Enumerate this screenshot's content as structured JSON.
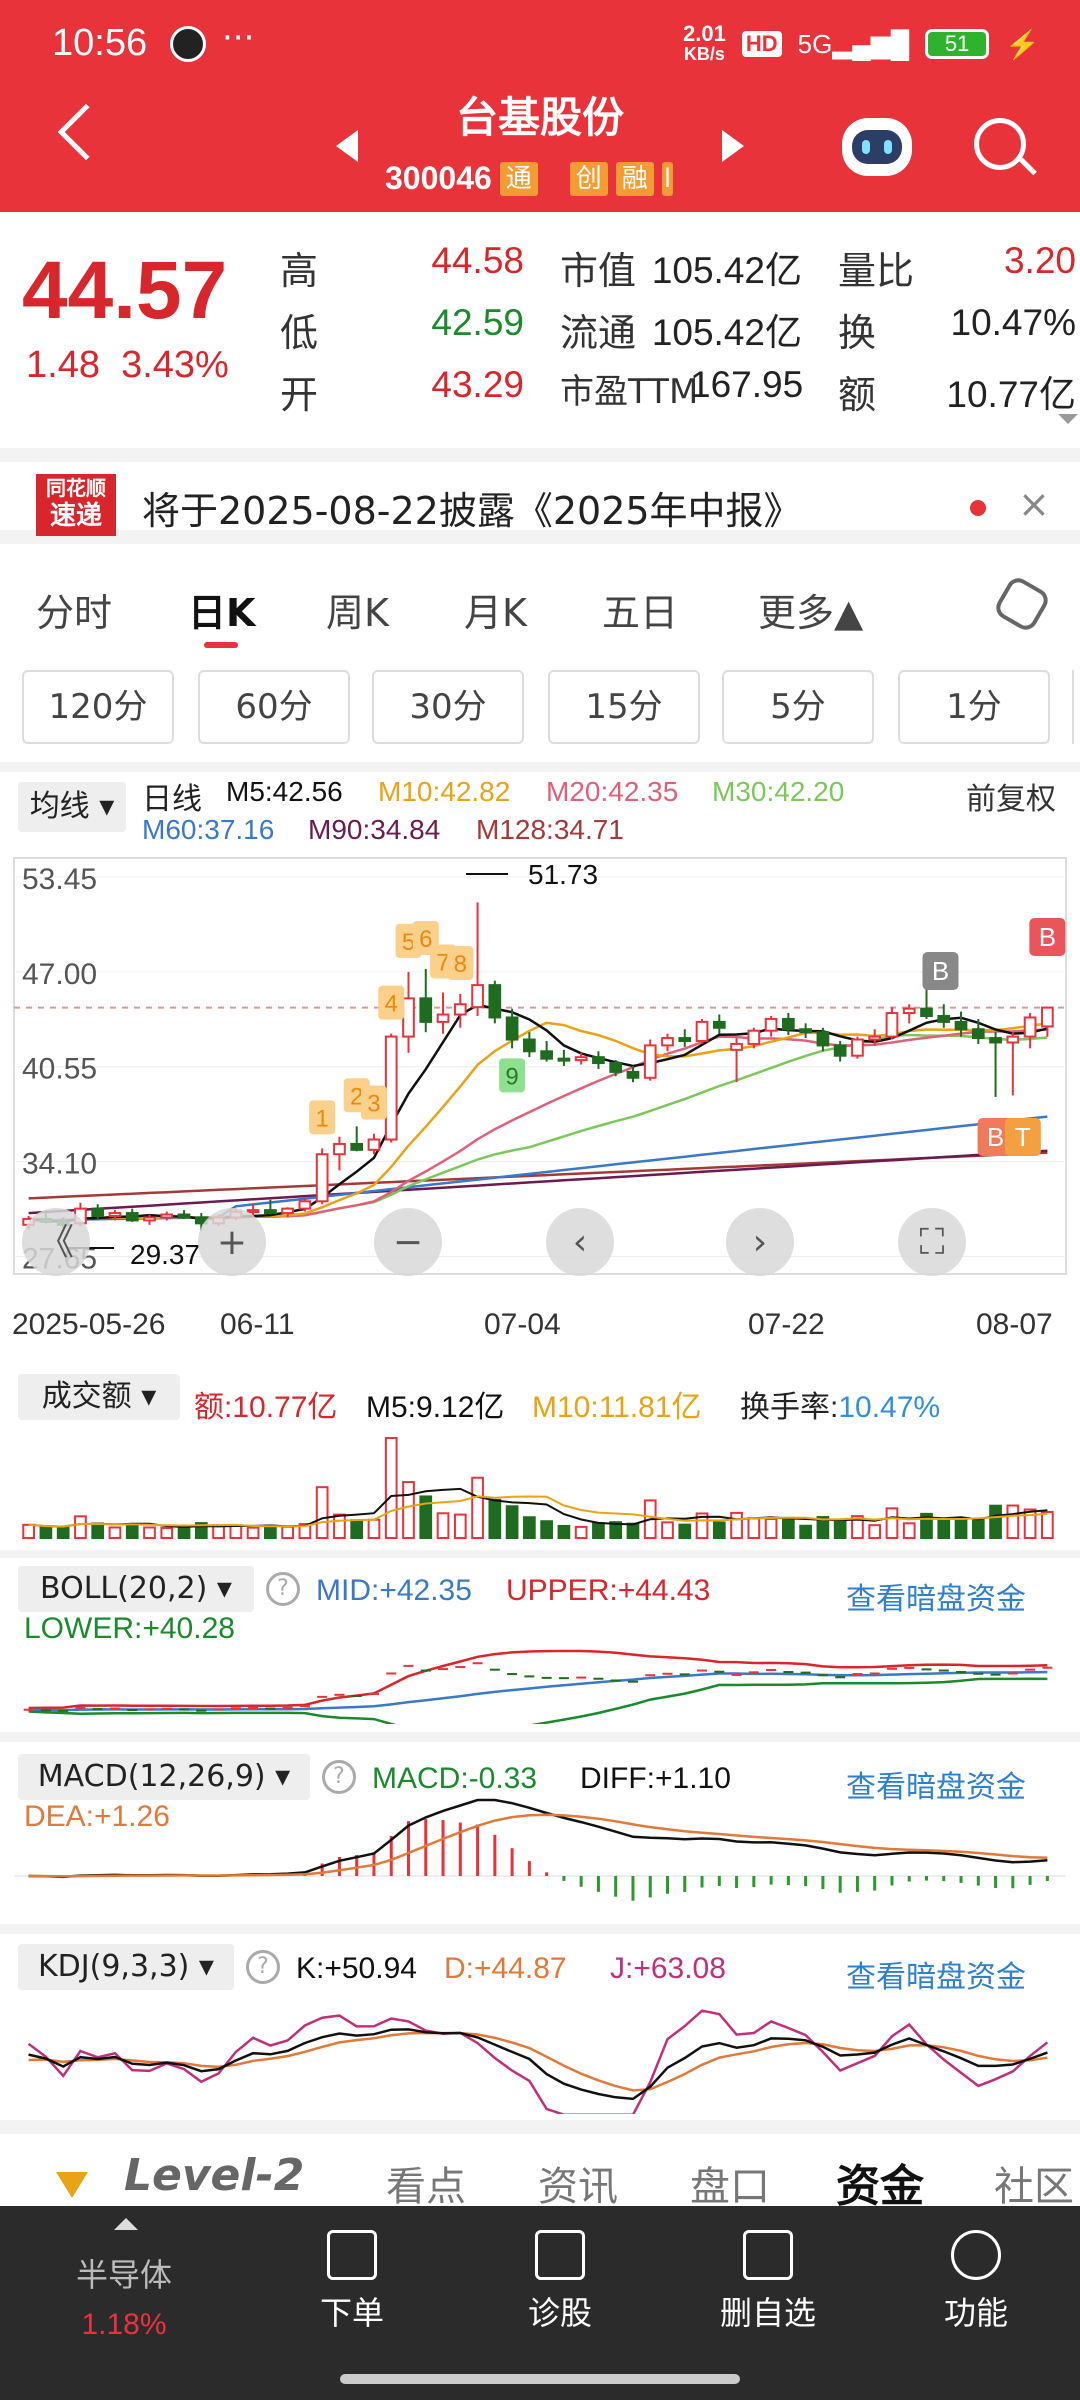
{
  "status": {
    "time": "10:56",
    "speed_top": "2.01",
    "speed_bot": "KB/s",
    "battery": "51"
  },
  "header": {
    "title": "台基股份",
    "code": "300046",
    "tags": [
      "通",
      "创",
      "融",
      "l"
    ]
  },
  "quote": {
    "price": "44.57",
    "change": "1.48",
    "pct": "3.43%",
    "high_label": "高",
    "high": "44.58",
    "low_label": "低",
    "low": "42.59",
    "open_label": "开",
    "open": "43.29",
    "mcap_label": "市值",
    "mcap": "105.42亿",
    "float_label": "流通",
    "float": "105.42亿",
    "pe_label": "市盈TTM",
    "pe": "167.95",
    "vr_label": "量比",
    "vr": "3.20",
    "turn_label": "换",
    "turn": "10.47%",
    "amt_label": "额",
    "amt": "10.77亿"
  },
  "notice": {
    "logo_top": "同花顺",
    "logo_bot": "速递",
    "text": "将于2025-08-22披露《2025年中报》"
  },
  "tabs": [
    "分时",
    "日K",
    "周K",
    "月K",
    "五日",
    "更多▲"
  ],
  "chips": [
    "120分",
    "60分",
    "30分",
    "15分",
    "5分",
    "1分"
  ],
  "ma_legend": {
    "selector": "均线",
    "kind": "日线",
    "adjust": "前复权",
    "m5": "M5:42.56",
    "m10": "M10:42.82",
    "m20": "M20:42.35",
    "m30": "M30:42.20",
    "m60": "M60:37.16",
    "m90": "M90:34.84",
    "m128": "M128:34.71"
  },
  "chart_data": {
    "type": "candlestick",
    "y_ticks": [
      "53.45",
      "47.00",
      "40.55",
      "34.10",
      "27.65"
    ],
    "x_ticks": [
      "2025-05-26",
      "06-11",
      "07-04",
      "07-22",
      "08-07"
    ],
    "high_mark": "51.73",
    "low_mark": "29.37",
    "nine_labels": [
      "1",
      "2",
      "3",
      "4",
      "5",
      "6",
      "7",
      "8",
      "9"
    ],
    "signals": [
      "B",
      "B",
      "B",
      "T"
    ],
    "colors": {
      "up": "#e8333a",
      "down": "#1f6b1f",
      "m5": "#111111",
      "m10": "#e8a317",
      "m20": "#e0607a",
      "m30": "#7cc75a",
      "m60": "#3a78c9",
      "m90": "#6b1b4f",
      "m128": "#a33a3a"
    },
    "candles": [
      [
        29.8,
        30.4,
        29.5,
        30.2
      ],
      [
        30.2,
        30.6,
        29.9,
        30.0
      ],
      [
        30.0,
        30.3,
        29.6,
        29.8
      ],
      [
        29.9,
        31.3,
        29.7,
        30.9
      ],
      [
        30.9,
        31.2,
        30.2,
        30.4
      ],
      [
        30.4,
        30.8,
        30.1,
        30.6
      ],
      [
        30.6,
        30.9,
        30.0,
        30.1
      ],
      [
        30.1,
        30.5,
        29.8,
        30.3
      ],
      [
        30.3,
        30.7,
        30.1,
        30.5
      ],
      [
        30.5,
        30.8,
        30.2,
        30.3
      ],
      [
        30.3,
        30.6,
        29.4,
        29.9
      ],
      [
        29.9,
        30.5,
        29.7,
        30.3
      ],
      [
        30.3,
        30.9,
        30.1,
        30.7
      ],
      [
        30.7,
        31.2,
        30.4,
        30.8
      ],
      [
        30.8,
        31.5,
        30.5,
        30.6
      ],
      [
        30.6,
        31.0,
        30.3,
        30.9
      ],
      [
        30.9,
        31.6,
        30.7,
        31.4
      ],
      [
        31.4,
        35.0,
        31.2,
        34.6
      ],
      [
        34.6,
        35.8,
        33.5,
        35.3
      ],
      [
        35.3,
        36.5,
        34.8,
        34.9
      ],
      [
        34.9,
        36.0,
        34.6,
        35.6
      ],
      [
        35.6,
        42.8,
        35.4,
        42.6
      ],
      [
        42.6,
        47.0,
        41.5,
        45.2
      ],
      [
        45.2,
        47.2,
        42.9,
        43.6
      ],
      [
        43.6,
        45.6,
        42.8,
        44.1
      ],
      [
        44.1,
        45.5,
        43.2,
        44.8
      ],
      [
        44.6,
        51.73,
        44.0,
        46.1
      ],
      [
        46.1,
        46.4,
        43.5,
        43.9
      ],
      [
        43.9,
        44.5,
        41.8,
        42.4
      ],
      [
        42.4,
        42.9,
        41.2,
        41.6
      ],
      [
        41.6,
        42.3,
        40.9,
        41.1
      ],
      [
        41.1,
        41.7,
        40.6,
        41.0
      ],
      [
        41.0,
        41.5,
        40.7,
        41.2
      ],
      [
        41.2,
        41.6,
        40.4,
        40.8
      ],
      [
        40.8,
        41.0,
        39.9,
        40.2
      ],
      [
        40.2,
        40.6,
        39.5,
        39.8
      ],
      [
        39.8,
        42.4,
        39.6,
        42.0
      ],
      [
        42.0,
        42.8,
        41.6,
        42.5
      ],
      [
        42.5,
        43.1,
        41.9,
        42.3
      ],
      [
        42.3,
        43.8,
        42.1,
        43.6
      ],
      [
        43.6,
        44.1,
        42.8,
        43.2
      ],
      [
        41.7,
        42.5,
        39.5,
        42.1
      ],
      [
        42.1,
        43.2,
        41.8,
        43.0
      ],
      [
        43.0,
        44.0,
        42.6,
        43.8
      ],
      [
        43.8,
        44.2,
        42.7,
        43.1
      ],
      [
        43.1,
        43.5,
        42.5,
        42.9
      ],
      [
        42.9,
        43.2,
        41.6,
        42.0
      ],
      [
        42.0,
        42.3,
        40.9,
        41.3
      ],
      [
        41.3,
        42.6,
        41.1,
        42.4
      ],
      [
        42.4,
        43.1,
        42.0,
        42.6
      ],
      [
        42.6,
        44.6,
        42.4,
        44.2
      ],
      [
        44.2,
        44.8,
        43.5,
        44.5
      ],
      [
        44.5,
        46.5,
        43.8,
        44.0
      ],
      [
        44.0,
        44.8,
        43.2,
        43.6
      ],
      [
        43.6,
        44.3,
        42.6,
        43.1
      ],
      [
        43.1,
        43.8,
        42.1,
        42.5
      ],
      [
        42.5,
        42.9,
        38.5,
        42.2
      ],
      [
        42.2,
        42.9,
        38.6,
        42.6
      ],
      [
        42.6,
        44.2,
        41.8,
        43.9
      ],
      [
        43.29,
        44.58,
        42.59,
        44.57
      ]
    ],
    "volume": {
      "label": "成交额",
      "amt": "额:10.77亿",
      "m5": "M5:9.12亿",
      "m10": "M10:11.81亿",
      "turn_label": "换手率:",
      "turn": "10.47%"
    },
    "boll": {
      "label": "BOLL(20,2)",
      "mid": "MID:+42.35",
      "upper": "UPPER:+44.43",
      "lower": "LOWER:+40.28",
      "link": "查看暗盘资金"
    },
    "macd": {
      "label": "MACD(12,26,9)",
      "macd": "MACD:-0.33",
      "diff": "DIFF:+1.10",
      "dea": "DEA:+1.26",
      "link": "查看暗盘资金"
    },
    "kdj": {
      "label": "KDJ(9,3,3)",
      "k": "K:+50.94",
      "d": "D:+44.87",
      "j": "J:+63.08",
      "link": "查看暗盘资金"
    }
  },
  "bottom_tabs": [
    "Level-2",
    "看点",
    "资讯",
    "盘口",
    "资金",
    "社区"
  ],
  "nav": {
    "sector": "半导体",
    "sector_pct": "1.18%",
    "items": [
      "下单",
      "诊股",
      "删自选",
      "功能"
    ]
  }
}
